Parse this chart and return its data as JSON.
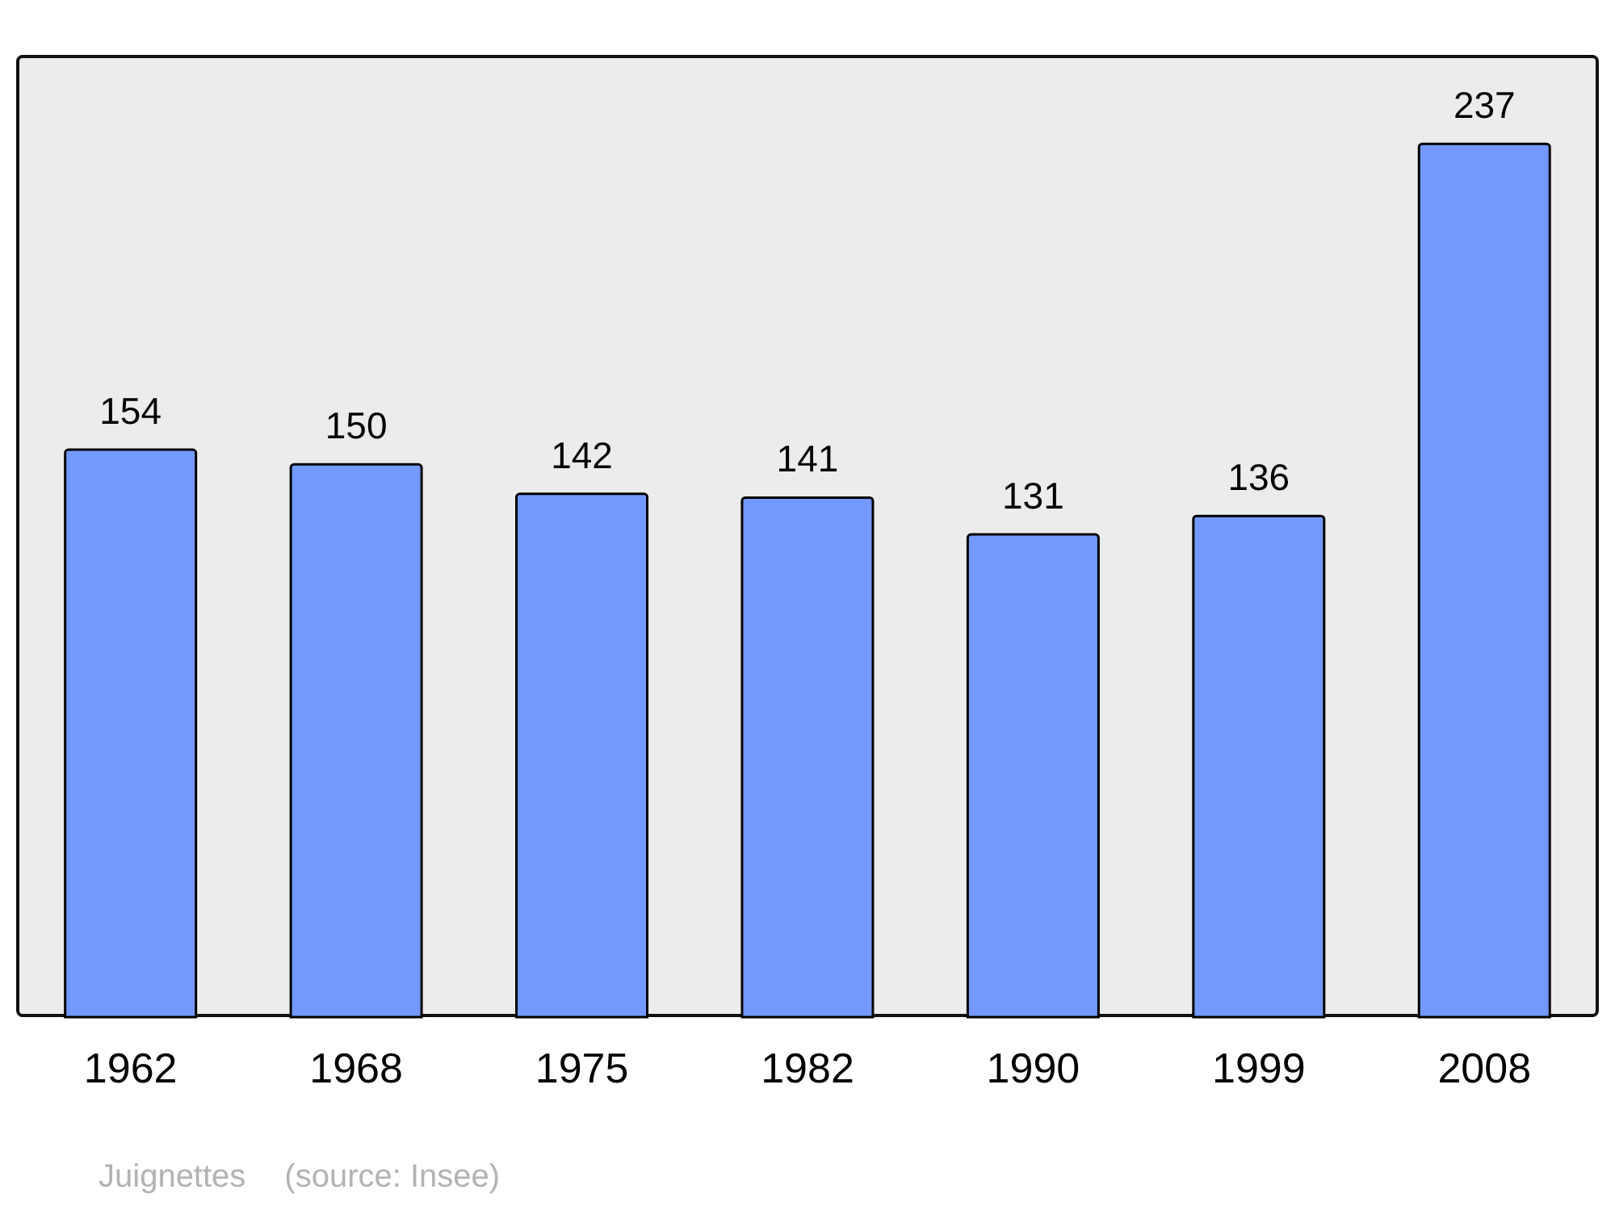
{
  "chart_data": {
    "type": "bar",
    "categories": [
      "1962",
      "1968",
      "1975",
      "1982",
      "1990",
      "1999",
      "2008"
    ],
    "values": [
      154,
      150,
      142,
      141,
      131,
      136,
      237
    ],
    "color": "#7399ff",
    "data_labels": true,
    "annotations": [
      "Juignettes",
      "(source: Insee)"
    ]
  }
}
